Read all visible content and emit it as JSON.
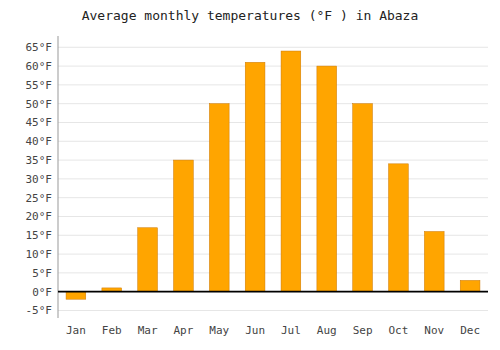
{
  "chart_data": {
    "type": "bar",
    "title": "Average monthly temperatures (°F ) in Abaza",
    "categories": [
      "Jan",
      "Feb",
      "Mar",
      "Apr",
      "May",
      "Jun",
      "Jul",
      "Aug",
      "Sep",
      "Oct",
      "Nov",
      "Dec"
    ],
    "values": [
      -2,
      1,
      17,
      35,
      50,
      61,
      64,
      60,
      50,
      34,
      16,
      3
    ],
    "color": "#FFA500",
    "ylim": [
      -7,
      68
    ],
    "yticks": [
      {
        "value": -5,
        "label": "-5°F"
      },
      {
        "value": 0,
        "label": "0°F"
      },
      {
        "value": 5,
        "label": "5°F"
      },
      {
        "value": 10,
        "label": "10°F"
      },
      {
        "value": 15,
        "label": "15°F"
      },
      {
        "value": 20,
        "label": "20°F"
      },
      {
        "value": 25,
        "label": "25°F"
      },
      {
        "value": 30,
        "label": "30°F"
      },
      {
        "value": 35,
        "label": "35°F"
      },
      {
        "value": 40,
        "label": "40°F"
      },
      {
        "value": 45,
        "label": "45°F"
      },
      {
        "value": 50,
        "label": "50°F"
      },
      {
        "value": 55,
        "label": "55°F"
      },
      {
        "value": 60,
        "label": "60°F"
      },
      {
        "value": 65,
        "label": "65°F"
      }
    ],
    "grid": true
  }
}
